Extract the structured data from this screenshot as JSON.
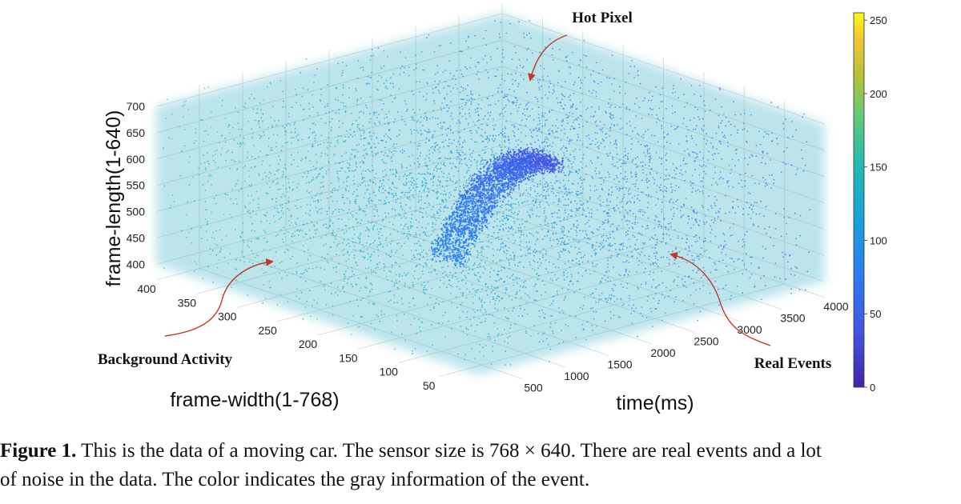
{
  "chart_data": {
    "type": "scatter",
    "subtype": "3d-scatter",
    "axes": {
      "time": {
        "label": "time(ms)",
        "ticks": [
          500,
          1000,
          1500,
          2000,
          2500,
          3000,
          3500,
          4000
        ],
        "range": [
          0,
          4000
        ]
      },
      "frame_width": {
        "label": "frame-width(1-768)",
        "ticks": [
          50,
          100,
          150,
          200,
          250,
          300,
          350,
          400
        ],
        "range": [
          0,
          400
        ]
      },
      "frame_length": {
        "label": "frame-length(1-640)",
        "ticks": [
          400,
          450,
          500,
          550,
          600,
          650,
          700
        ],
        "range": [
          370,
          720
        ]
      }
    },
    "colorbar": {
      "ticks": [
        0,
        50,
        100,
        150,
        200,
        250
      ],
      "range": [
        0,
        255
      ],
      "colormap": "parula"
    },
    "annotations": [
      {
        "id": "hot-pixel",
        "text": "Hot Pixel"
      },
      {
        "id": "background-activity",
        "text": "Background Activity"
      },
      {
        "id": "real-events",
        "text": "Real Events"
      }
    ],
    "grid": true
  },
  "caption": {
    "label": "Figure 1.",
    "line1": " This is the data of a moving car. The sensor size is 768 × 640. There are real events and a lot",
    "line2": "of noise in the data. The color indicates the gray information of the event."
  },
  "colors": {
    "arrow": "#c0392b",
    "background": "#ffffff"
  }
}
